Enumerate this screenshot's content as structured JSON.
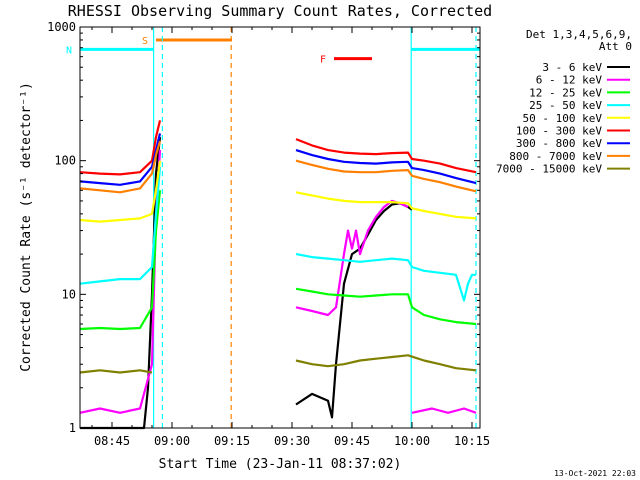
{
  "chart_data": {
    "type": "line",
    "title": "RHESSI Observing Summary Count Rates, Corrected",
    "xlabel": "Start Time (23-Jan-11 08:37:02)",
    "ylabel": "Corrected Count Rate (s⁻¹ detector⁻¹)",
    "yscale": "log",
    "ylim": [
      1,
      1000
    ],
    "y_ticks": [
      1,
      10,
      100,
      1000
    ],
    "x_unit": "minutes since 08:37:02",
    "xlim": [
      0,
      100
    ],
    "x_ticks": [
      {
        "label": "08:45",
        "value": 8
      },
      {
        "label": "09:00",
        "value": 23
      },
      {
        "label": "09:15",
        "value": 38
      },
      {
        "label": "09:30",
        "value": 53
      },
      {
        "label": "09:45",
        "value": 68
      },
      {
        "label": "10:00",
        "value": 83
      },
      {
        "label": "10:15",
        "value": 98
      }
    ],
    "legend": {
      "header": [
        "Det 1,3,4,5,6,9,",
        "Att 0"
      ],
      "placement": "right"
    },
    "series": [
      {
        "name": "3 - 6 keV",
        "color": "#000000",
        "segments": [
          {
            "x": [
              0,
              16,
              17,
              18,
              19,
              20
            ],
            "y": [
              1,
              1,
              2,
              10,
              80,
              150
            ]
          },
          {
            "x": [
              54,
              58,
              62,
              63,
              64,
              66,
              68,
              70,
              72,
              74,
              76,
              78,
              80,
              82,
              83
            ],
            "y": [
              1.5,
              1.8,
              1.6,
              1.2,
              3,
              12,
              20,
              22,
              28,
              36,
              42,
              47,
              48,
              45,
              43
            ]
          }
        ]
      },
      {
        "name": "6 - 12 keV",
        "color": "#ff00ff",
        "segments": [
          {
            "x": [
              0,
              5,
              10,
              15,
              18,
              19,
              20
            ],
            "y": [
              1.3,
              1.4,
              1.3,
              1.4,
              3,
              40,
              120
            ]
          },
          {
            "x": [
              54,
              58,
              62,
              64,
              66,
              67,
              68,
              69,
              70,
              72,
              74,
              76,
              78,
              80,
              82
            ],
            "y": [
              8,
              7.5,
              7,
              8,
              20,
              30,
              22,
              30,
              20,
              30,
              38,
              45,
              50,
              48,
              45
            ]
          },
          {
            "x": [
              83,
              88,
              92,
              96,
              99
            ],
            "y": [
              1.3,
              1.4,
              1.3,
              1.4,
              1.3
            ]
          }
        ]
      },
      {
        "name": "12 - 25 keV",
        "color": "#00ff00",
        "segments": [
          {
            "x": [
              0,
              5,
              10,
              15,
              18,
              19,
              20
            ],
            "y": [
              5.5,
              5.6,
              5.5,
              5.6,
              8,
              30,
              60
            ]
          },
          {
            "x": [
              54,
              58,
              62,
              66,
              70,
              74,
              78,
              82,
              83,
              86,
              90,
              94,
              99
            ],
            "y": [
              11,
              10.5,
              10,
              9.8,
              9.6,
              9.8,
              10,
              10,
              8,
              7,
              6.5,
              6.2,
              6
            ]
          }
        ]
      },
      {
        "name": "25 - 50 keV",
        "color": "#00ffff",
        "segments": [
          {
            "x": [
              0,
              5,
              10,
              15,
              18,
              19,
              20
            ],
            "y": [
              12,
              12.5,
              13,
              13,
              16,
              40,
              90
            ]
          },
          {
            "x": [
              54,
              58,
              62,
              66,
              70,
              74,
              78,
              82,
              83,
              86,
              90,
              94,
              96,
              97,
              98,
              99
            ],
            "y": [
              20,
              19,
              18.5,
              18,
              17.5,
              18,
              18.5,
              18,
              16,
              15,
              14.5,
              14,
              9,
              12,
              14,
              14
            ]
          }
        ]
      },
      {
        "name": "50 - 100 keV",
        "color": "#ffff00",
        "segments": [
          {
            "x": [
              0,
              5,
              10,
              15,
              18,
              19,
              20
            ],
            "y": [
              36,
              35,
              36,
              37,
              40,
              60,
              100
            ]
          },
          {
            "x": [
              54,
              58,
              62,
              66,
              70,
              74,
              78,
              82,
              83,
              86,
              90,
              94,
              99
            ],
            "y": [
              58,
              55,
              52,
              50,
              49,
              49,
              49,
              48,
              44,
              42,
              40,
              38,
              37
            ]
          }
        ]
      },
      {
        "name": "100 - 300 keV",
        "color": "#ff0000",
        "segments": [
          {
            "x": [
              0,
              5,
              10,
              15,
              18,
              19,
              20
            ],
            "y": [
              82,
              80,
              79,
              82,
              100,
              150,
              200
            ]
          },
          {
            "x": [
              54,
              58,
              62,
              66,
              70,
              74,
              78,
              82,
              83,
              86,
              90,
              94,
              99
            ],
            "y": [
              145,
              130,
              120,
              115,
              113,
              112,
              114,
              115,
              103,
              100,
              95,
              88,
              82
            ]
          }
        ]
      },
      {
        "name": "300 - 800 keV",
        "color": "#0000ff",
        "segments": [
          {
            "x": [
              0,
              5,
              10,
              15,
              18,
              19,
              20
            ],
            "y": [
              70,
              68,
              66,
              70,
              90,
              120,
              160
            ]
          },
          {
            "x": [
              54,
              58,
              62,
              66,
              70,
              74,
              78,
              82,
              83,
              86,
              90,
              94,
              99
            ],
            "y": [
              120,
              110,
              103,
              98,
              96,
              95,
              97,
              98,
              88,
              85,
              80,
              74,
              68
            ]
          }
        ]
      },
      {
        "name": "800 - 7000 keV",
        "color": "#ff8000",
        "segments": [
          {
            "x": [
              0,
              5,
              10,
              15,
              18,
              19,
              20
            ],
            "y": [
              62,
              60,
              58,
              62,
              80,
              110,
              140
            ]
          },
          {
            "x": [
              54,
              58,
              62,
              66,
              70,
              74,
              78,
              82,
              83,
              86,
              90,
              94,
              99
            ],
            "y": [
              100,
              93,
              87,
              83,
              82,
              82,
              84,
              85,
              77,
              73,
              69,
              64,
              59
            ]
          }
        ]
      },
      {
        "name": "7000 - 15000 keV",
        "color": "#808000",
        "segments": [
          {
            "x": [
              0,
              5,
              10,
              15,
              18
            ],
            "y": [
              2.6,
              2.7,
              2.6,
              2.7,
              2.6
            ]
          },
          {
            "x": [
              54,
              58,
              62,
              66,
              70,
              74,
              78,
              82,
              86,
              90,
              94,
              99
            ],
            "y": [
              3.2,
              3,
              2.9,
              3,
              3.2,
              3.3,
              3.4,
              3.5,
              3.2,
              3,
              2.8,
              2.7
            ]
          }
        ]
      }
    ],
    "flag_bars": [
      {
        "label": "S",
        "color": "#ff8000",
        "x_start": 19,
        "x_end": 38,
        "y": 800
      },
      {
        "label": "N",
        "color": "#00ffff",
        "x_start": 0,
        "x_end": 18.5,
        "y": 680
      },
      {
        "label": "F",
        "color": "#ff0000",
        "x_start": 63.5,
        "x_end": 73,
        "y": 580
      },
      {
        "label": "",
        "color": "#00ffff",
        "x_start": 82.8,
        "x_end": 100,
        "y": 680
      }
    ],
    "vertical_markers": [
      {
        "x": 18.4,
        "color": "#00ffff",
        "style": "solid"
      },
      {
        "x": 20.6,
        "color": "#00ffff",
        "style": "dashed"
      },
      {
        "x": 37.8,
        "color": "#ff8000",
        "style": "dashed"
      },
      {
        "x": 82.8,
        "color": "#00ffff",
        "style": "solid"
      },
      {
        "x": 99,
        "color": "#00ffff",
        "style": "dashed"
      }
    ],
    "footer": "13-Oct-2021 22:03"
  }
}
